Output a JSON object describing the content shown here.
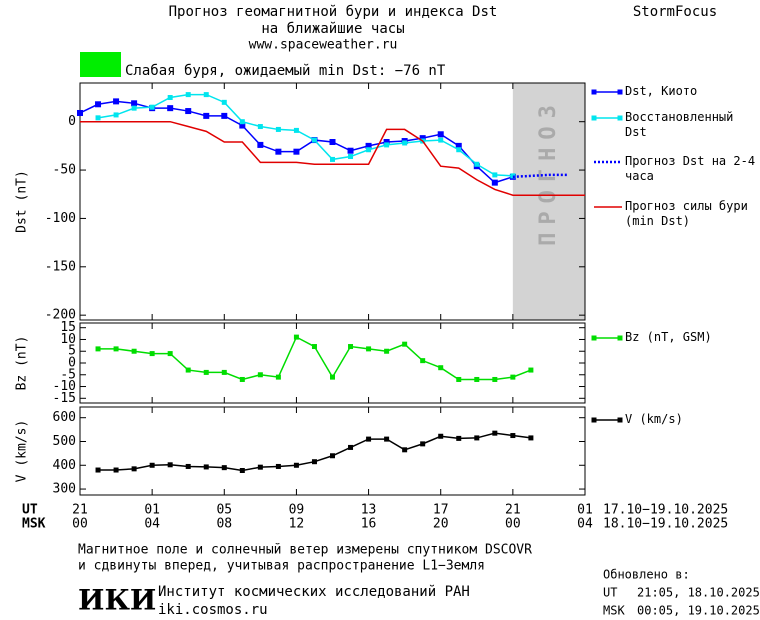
{
  "header": {
    "title_lines": [
      "Прогноз геомагнитной бури и индекса Dst",
      "на ближайшие часы"
    ],
    "site": "www.spaceweather.ru",
    "brand": "StormFocus"
  },
  "banner": {
    "color": "#00ee00",
    "text": "Слабая буря, ожидаемый min Dst: −76 nT"
  },
  "chart_data": [
    {
      "type": "line",
      "ylabel": "Dst (nT)",
      "xlim": [
        0,
        28
      ],
      "ylim": [
        -205,
        40
      ],
      "yticks": [
        -200,
        -150,
        -100,
        -50,
        0
      ],
      "forecast_band": [
        24,
        28
      ],
      "forecast_label": "ПРОГНОЗ",
      "legend": "right",
      "series": [
        {
          "name": "Dst, Киото",
          "color": "#0000ff",
          "marker": "square",
          "line_style": "solid",
          "x": [
            0,
            1,
            2,
            3,
            4,
            5,
            6,
            7,
            8,
            9,
            10,
            11,
            12,
            13,
            14,
            15,
            16,
            17,
            18,
            19,
            20,
            21,
            22,
            23,
            24
          ],
          "values": [
            9,
            18,
            21,
            19,
            14,
            14,
            11,
            6,
            6,
            -4,
            -24,
            -31,
            -31,
            -19,
            -21,
            -30,
            -25,
            -21,
            -20,
            -17,
            -13,
            -25,
            -46,
            -63,
            -57
          ]
        },
        {
          "name": "Восстановленный Dst",
          "color": "#00e5ee",
          "marker": "square-small",
          "line_style": "solid",
          "x": [
            1,
            2,
            3,
            4,
            5,
            6,
            7,
            8,
            9,
            10,
            11,
            12,
            13,
            14,
            15,
            16,
            17,
            18,
            19,
            20,
            21,
            22,
            23,
            24
          ],
          "values": [
            4,
            7,
            14,
            15,
            25,
            28,
            28,
            20,
            0,
            -5,
            -8,
            -9,
            -19,
            -39,
            -36,
            -29,
            -24,
            -22,
            -20,
            -19,
            -29,
            -44,
            -55,
            -56
          ]
        },
        {
          "name": "Прогноз Dst на 2-4 часа",
          "color": "#0000ff",
          "marker": "none",
          "line_style": "dotted",
          "x": [
            24,
            25,
            26,
            27
          ],
          "values": [
            -57,
            -56,
            -55,
            -55
          ]
        },
        {
          "name": "Прогноз силы бури (min Dst)",
          "color": "#e00000",
          "marker": "none",
          "line_style": "solid",
          "x": [
            0,
            5,
            6,
            7,
            8,
            9,
            10,
            11,
            12,
            13,
            14,
            15,
            16,
            17,
            18,
            19,
            20,
            21,
            22,
            23,
            24,
            28
          ],
          "values": [
            0,
            0,
            -5,
            -10,
            -21,
            -21,
            -42,
            -42,
            -42,
            -44,
            -44,
            -44,
            -44,
            -8,
            -8,
            -20,
            -46,
            -48,
            -60,
            -70,
            -76,
            -76
          ]
        }
      ]
    },
    {
      "type": "line",
      "ylabel": "Bz (nT)",
      "xlim": [
        0,
        28
      ],
      "ylim": [
        -17,
        17
      ],
      "yticks": [
        -15,
        -10,
        -5,
        0,
        5,
        10,
        15
      ],
      "legend": "right",
      "series": [
        {
          "name": "Bz (nT, GSM)",
          "color": "#00dd00",
          "marker": "square-small",
          "line_style": "solid",
          "x": [
            1,
            2,
            3,
            4,
            5,
            6,
            7,
            8,
            9,
            10,
            11,
            12,
            13,
            14,
            15,
            16,
            17,
            18,
            19,
            20,
            21,
            22,
            23,
            24,
            25
          ],
          "values": [
            6,
            6,
            5,
            4,
            4,
            -3,
            -4,
            -4,
            -7,
            -5,
            -6,
            11,
            7,
            -6,
            7,
            6,
            5,
            8,
            1,
            -2,
            -7,
            -7,
            -7,
            -6,
            -3
          ]
        }
      ]
    },
    {
      "type": "line",
      "ylabel": "V (km/s)",
      "xlim": [
        0,
        28
      ],
      "ylim": [
        275,
        645
      ],
      "yticks": [
        300,
        400,
        500,
        600
      ],
      "legend": "right",
      "xticks": [
        {
          "value": 0,
          "label": "21"
        },
        {
          "value": 4,
          "label": "01"
        },
        {
          "value": 8,
          "label": "05"
        },
        {
          "value": 12,
          "label": "09"
        },
        {
          "value": 16,
          "label": "13"
        },
        {
          "value": 20,
          "label": "17"
        },
        {
          "value": 24,
          "label": "21"
        },
        {
          "value": 28,
          "label": "01"
        }
      ],
      "msk_ticks": [
        {
          "value": 0,
          "label": "00"
        },
        {
          "value": 4,
          "label": "04"
        },
        {
          "value": 8,
          "label": "08"
        },
        {
          "value": 12,
          "label": "12"
        },
        {
          "value": 16,
          "label": "16"
        },
        {
          "value": 20,
          "label": "20"
        },
        {
          "value": 24,
          "label": "00"
        },
        {
          "value": 28,
          "label": "04"
        }
      ],
      "ut_label": "UT",
      "msk_label": "MSK",
      "ut_dates": "17.10−19.10.2025",
      "msk_dates": "18.10−19.10.2025",
      "series": [
        {
          "name": "V (km/s)",
          "color": "#000000",
          "marker": "square-small",
          "line_style": "solid",
          "x": [
            1,
            2,
            3,
            4,
            5,
            6,
            7,
            8,
            9,
            10,
            11,
            12,
            13,
            14,
            15,
            16,
            17,
            18,
            19,
            20,
            21,
            22,
            23,
            24,
            25
          ],
          "values": [
            380,
            380,
            385,
            400,
            402,
            395,
            393,
            390,
            378,
            392,
            395,
            400,
            415,
            440,
            475,
            510,
            510,
            465,
            490,
            522,
            513,
            515,
            535,
            525,
            515
          ]
        }
      ]
    }
  ],
  "footer": {
    "note_lines": [
      "Магнитное поле и солнечный ветер измерены спутником DSCOVR",
      "и сдвинуты вперед, учитывая распространение L1−Земля"
    ],
    "logo": "ИКИ",
    "institute": "Институт космических исследований РАН",
    "institute_site": "iki.cosmos.ru",
    "updated": {
      "label": "Обновлено в:",
      "rows": [
        [
          "UT",
          "21:05, 18.10.2025"
        ],
        [
          "MSK",
          "00:05, 19.10.2025"
        ]
      ]
    }
  }
}
